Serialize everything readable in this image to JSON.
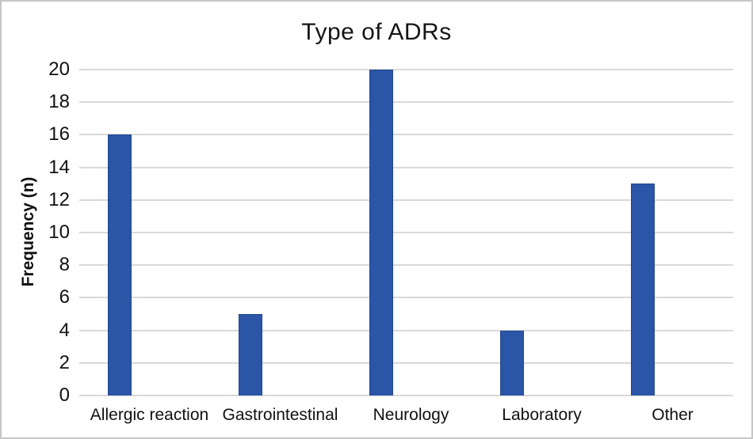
{
  "figure": {
    "background_color": "#ffffff",
    "border_color": "#c6c6c6"
  },
  "chart_data": {
    "type": "bar",
    "title": "Type of ADRs",
    "categories": [
      "Allergic reaction",
      "Gastrointestinal",
      "Neurology",
      "Laboratory",
      "Other"
    ],
    "values": [
      16,
      5,
      20,
      4,
      13
    ],
    "xlabel": "",
    "ylabel": "Frequency (n)",
    "ylim": [
      0,
      20
    ],
    "yticks": [
      0,
      2,
      4,
      6,
      8,
      10,
      12,
      14,
      16,
      18,
      20
    ],
    "grid": true,
    "legend_position": "none",
    "bar_color": "#2b55a7",
    "bar_border_color": "#24478f",
    "gridline_color": "#d9d9d9",
    "text_color": "#111111"
  }
}
